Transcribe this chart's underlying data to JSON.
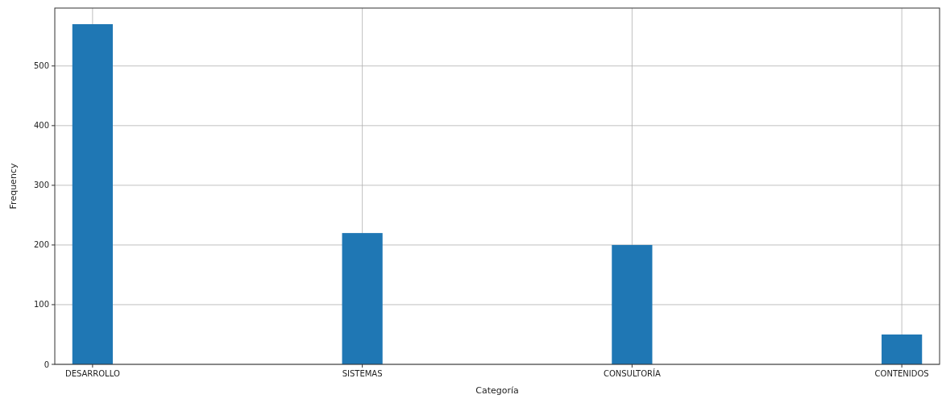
{
  "chart_data": {
    "type": "bar",
    "xlabel": "Categoría",
    "ylabel": "Frequency",
    "categories": [
      "DESARROLLO",
      "SISTEMAS",
      "CONSULTORÍA",
      "CONTENIDOS"
    ],
    "values": [
      570,
      220,
      200,
      50
    ],
    "color": "#1f77b4",
    "ylim": [
      0,
      597
    ],
    "yticks": [
      0,
      100,
      200,
      300,
      400,
      500
    ],
    "grid": true
  }
}
